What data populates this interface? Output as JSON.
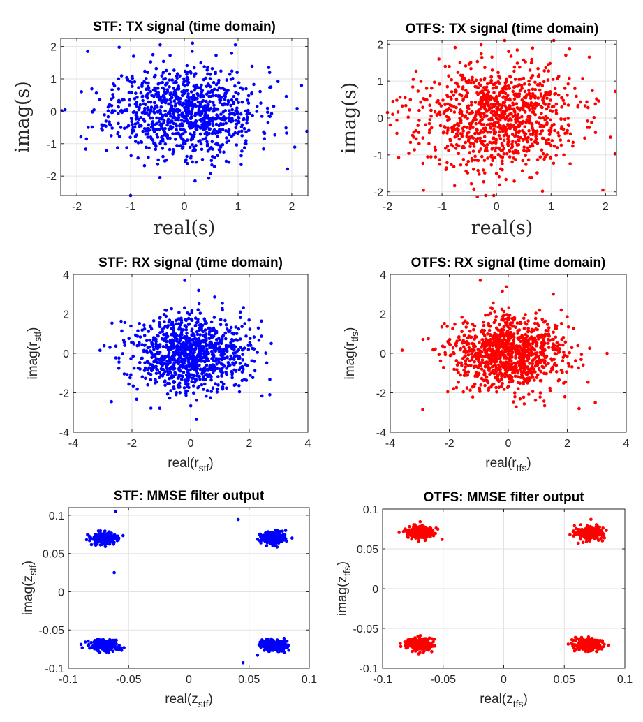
{
  "colors": {
    "stf": "#0000ff",
    "otfs": "#ff0000"
  },
  "chart_data": [
    {
      "type": "scatter",
      "title": "STF: TX signal (time domain)",
      "xlabel": "real(s)",
      "ylabel": "imag(s)",
      "label_style": "math",
      "xlim": [
        -2.3,
        2.3
      ],
      "ylim": [
        -2.6,
        2.25
      ],
      "xticks": [
        -2,
        -1,
        0,
        1,
        2
      ],
      "yticks": [
        -2,
        -1,
        0,
        1,
        2
      ],
      "color": "#0000ff",
      "distribution": {
        "kind": "gaussian",
        "n": 1000,
        "sigma_x": 0.68,
        "sigma_y": 0.68,
        "seed": 11
      },
      "points": [
        [
          -2.28,
          0.02
        ],
        [
          2.28,
          -0.62
        ],
        [
          -1.0,
          -2.6
        ],
        [
          2.18,
          0.8
        ],
        [
          -1.8,
          1.85
        ],
        [
          0.95,
          2.05
        ],
        [
          -0.45,
          2.05
        ],
        [
          -2.22,
          0.05
        ],
        [
          1.92,
          -1.78
        ],
        [
          0.2,
          -2.15
        ]
      ]
    },
    {
      "type": "scatter",
      "title": "OTFS: TX signal (time domain)",
      "xlabel": "real(s)",
      "ylabel": "imag(s)",
      "label_style": "math",
      "xlim": [
        -2.0,
        2.2
      ],
      "ylim": [
        -2.1,
        2.1
      ],
      "xticks": [
        -2,
        -1,
        0,
        1,
        2
      ],
      "yticks": [
        -2,
        -1,
        0,
        1,
        2
      ],
      "color": "#ff0000",
      "distribution": {
        "kind": "gaussian",
        "n": 1000,
        "sigma_x": 0.72,
        "sigma_y": 0.72,
        "seed": 23
      },
      "points": [
        [
          -2.0,
          0.15
        ],
        [
          2.18,
          0.72
        ],
        [
          1.05,
          2.1
        ],
        [
          0.15,
          2.1
        ],
        [
          -0.05,
          -2.1
        ],
        [
          -0.2,
          -2.1
        ],
        [
          1.95,
          -1.95
        ],
        [
          1.7,
          1.65
        ],
        [
          -1.9,
          0.45
        ]
      ]
    },
    {
      "type": "scatter",
      "title": "STF: RX signal (time domain)",
      "xlabel": "real(r",
      "xlabel_sub": "stf",
      "xlabel_end": ")",
      "ylabel": "imag(r",
      "ylabel_sub": "stf",
      "ylabel_end": ")",
      "label_style": "plain",
      "xlim": [
        -4,
        4
      ],
      "ylim": [
        -4,
        4
      ],
      "xticks": [
        -4,
        -2,
        0,
        2,
        4
      ],
      "yticks": [
        -4,
        -2,
        0,
        2,
        4
      ],
      "color": "#0000ff",
      "distribution": {
        "kind": "gaussian",
        "n": 1000,
        "sigma_x": 0.95,
        "sigma_y": 0.95,
        "seed": 37
      },
      "points": [
        [
          -0.2,
          3.7
        ],
        [
          0.2,
          -3.35
        ],
        [
          2.75,
          0.5
        ],
        [
          -2.75,
          0.3
        ],
        [
          -2.7,
          -2.45
        ],
        [
          2.7,
          -2.1
        ]
      ]
    },
    {
      "type": "scatter",
      "title": "OTFS: RX signal (time domain)",
      "xlabel": "real(r",
      "xlabel_sub": "tfs",
      "xlabel_end": ")",
      "ylabel": "imag(r",
      "ylabel_sub": "tfs",
      "ylabel_end": ")",
      "label_style": "plain",
      "xlim": [
        -4,
        4
      ],
      "ylim": [
        -4,
        4
      ],
      "xticks": [
        -4,
        -2,
        0,
        2,
        4
      ],
      "yticks": [
        -4,
        -2,
        0,
        2,
        4
      ],
      "color": "#ff0000",
      "distribution": {
        "kind": "gaussian",
        "n": 1000,
        "sigma_x": 0.95,
        "sigma_y": 0.95,
        "seed": 41
      },
      "points": [
        [
          -0.95,
          3.7
        ],
        [
          3.35,
          0.0
        ],
        [
          -2.9,
          -2.85
        ],
        [
          -0.2,
          3.15
        ],
        [
          2.95,
          -2.5
        ],
        [
          2.4,
          -2.8
        ]
      ]
    },
    {
      "type": "scatter",
      "title": "STF: MMSE filter output",
      "xlabel": "real(z",
      "xlabel_sub": "stf",
      "xlabel_end": ")",
      "ylabel": "imag(z",
      "ylabel_sub": "stf",
      "ylabel_end": ")",
      "label_style": "plain",
      "xlim": [
        -0.1,
        0.1
      ],
      "ylim": [
        -0.1,
        0.11
      ],
      "xticks": [
        -0.1,
        -0.05,
        0,
        0.05,
        0.1
      ],
      "yticks": [
        -0.1,
        -0.05,
        0,
        0.05,
        0.1
      ],
      "color": "#0000ff",
      "distribution": {
        "kind": "clusters",
        "n_per_cluster": 250,
        "sigma": 0.0045,
        "seed": 53,
        "centers": [
          [
            -0.07,
            0.07
          ],
          [
            0.07,
            0.07
          ],
          [
            -0.07,
            -0.07
          ],
          [
            0.07,
            -0.07
          ]
        ]
      },
      "points": [
        [
          -0.061,
          0.105
        ],
        [
          -0.062,
          0.025
        ],
        [
          0.045,
          -0.093
        ],
        [
          0.057,
          -0.083
        ],
        [
          0.041,
          0.0945
        ]
      ]
    },
    {
      "type": "scatter",
      "title": "OTFS: MMSE filter output",
      "xlabel": "real(z",
      "xlabel_sub": "tfs",
      "xlabel_end": ")",
      "ylabel": "imag(z",
      "ylabel_sub": "tfs",
      "ylabel_end": ")",
      "label_style": "plain",
      "xlim": [
        -0.1,
        0.1
      ],
      "ylim": [
        -0.1,
        0.1
      ],
      "xticks": [
        -0.1,
        -0.05,
        0,
        0.05,
        0.1
      ],
      "yticks": [
        -0.1,
        -0.05,
        0,
        0.05,
        0.1
      ],
      "color": "#ff0000",
      "distribution": {
        "kind": "clusters",
        "n_per_cluster": 250,
        "sigma": 0.0045,
        "seed": 67,
        "centers": [
          [
            -0.07,
            0.07
          ],
          [
            0.07,
            0.07
          ],
          [
            -0.07,
            -0.07
          ],
          [
            0.07,
            -0.07
          ]
        ]
      },
      "points": [
        [
          -0.08,
          0.072
        ],
        [
          0.083,
          -0.07
        ],
        [
          -0.069,
          0.084
        ],
        [
          0.072,
          0.087
        ]
      ]
    }
  ]
}
